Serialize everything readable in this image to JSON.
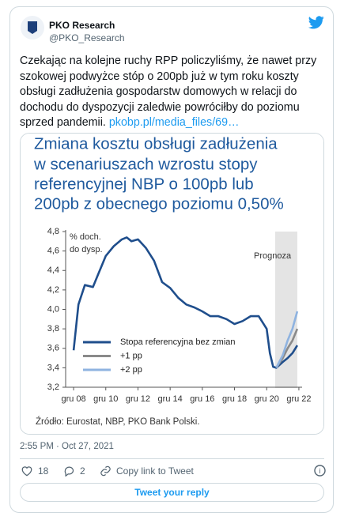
{
  "tweet": {
    "author_name": "PKO Research",
    "handle": "@PKO_Research",
    "text": "Czekając na kolejne ruchy RPP policzyliśmy, że nawet przy szokowej podwyżce stóp o 200pb już w tym roku koszty obsługi zadłużenia gospodarstw domowych w relacji do dochodu do dyspozycji zaledwie powróciłby do poziomu sprzed pandemii.",
    "link": "pkobp.pl/media_files/69…",
    "timestamp": "2:55 PM · Oct 27, 2021",
    "likes": "18",
    "replies": "2",
    "copy_link": "Copy link to Tweet",
    "reply_button": "Tweet your reply"
  },
  "chart_data": {
    "type": "line",
    "title": [
      "Zmiana kosztu obsługi zadłużenia",
      "w scenariuszach wzrostu stopy",
      "referencyjnej NBP o 100pb lub",
      "200pb z obecnego poziomu 0,50%"
    ],
    "ylabel": [
      "% doch.",
      "do dysp."
    ],
    "annotation": "Prognoza",
    "source": "Źródło: Eurostat, NBP, PKO Bank Polski.",
    "x": [
      2008,
      2008.3,
      2008.7,
      2009.2,
      2009.5,
      2010,
      2010.5,
      2011,
      2011.3,
      2011.6,
      2012,
      2012.5,
      2013,
      2013.5,
      2014,
      2014.5,
      2015,
      2015.5,
      2016,
      2016.5,
      2017,
      2017.5,
      2018,
      2018.5,
      2019,
      2019.5,
      2020,
      2020.2,
      2020.4,
      2020.6,
      2021,
      2021.3,
      2021.6,
      2021.9
    ],
    "series": [
      {
        "name": "Stopa referencyjna bez zmian",
        "color": "#1f4e8c",
        "values": [
          3.58,
          4.05,
          4.25,
          4.23,
          4.35,
          4.55,
          4.65,
          4.72,
          4.74,
          4.7,
          4.72,
          4.63,
          4.5,
          4.28,
          4.22,
          4.12,
          4.05,
          4.02,
          3.98,
          3.93,
          3.93,
          3.9,
          3.85,
          3.88,
          3.93,
          3.93,
          3.8,
          3.55,
          3.41,
          3.4,
          3.46,
          3.5,
          3.55,
          3.63
        ]
      },
      {
        "name": "+1 pp",
        "color": "#8a8a8a",
        "values": [
          null,
          null,
          null,
          null,
          null,
          null,
          null,
          null,
          null,
          null,
          null,
          null,
          null,
          null,
          null,
          null,
          null,
          null,
          null,
          null,
          null,
          null,
          null,
          null,
          null,
          null,
          null,
          null,
          null,
          3.4,
          3.5,
          3.6,
          3.68,
          3.8
        ]
      },
      {
        "name": "+2 pp",
        "color": "#8fb3e0",
        "values": [
          null,
          null,
          null,
          null,
          null,
          null,
          null,
          null,
          null,
          null,
          null,
          null,
          null,
          null,
          null,
          null,
          null,
          null,
          null,
          null,
          null,
          null,
          null,
          null,
          null,
          null,
          null,
          null,
          null,
          3.4,
          3.53,
          3.68,
          3.8,
          3.98
        ]
      }
    ],
    "xlim": [
      2007.8,
      2022.2
    ],
    "ylim": [
      3.2,
      4.8
    ],
    "xticks": [
      {
        "value": 2008,
        "label": "gru 08"
      },
      {
        "value": 2010,
        "label": "gru 10"
      },
      {
        "value": 2012,
        "label": "gru 12"
      },
      {
        "value": 2014,
        "label": "gru 14"
      },
      {
        "value": 2016,
        "label": "gru 16"
      },
      {
        "value": 2018,
        "label": "gru 18"
      },
      {
        "value": 2020,
        "label": "gru 20"
      },
      {
        "value": 2022,
        "label": "gru 22"
      }
    ],
    "yticks": [
      {
        "value": 3.2,
        "label": "3,2"
      },
      {
        "value": 3.4,
        "label": "3,4"
      },
      {
        "value": 3.6,
        "label": "3,6"
      },
      {
        "value": 3.8,
        "label": "3,8"
      },
      {
        "value": 4,
        "label": "4,0"
      },
      {
        "value": 4.2,
        "label": "4,2"
      },
      {
        "value": 4.4,
        "label": "4,4"
      },
      {
        "value": 4.6,
        "label": "4,6"
      },
      {
        "value": 4.8,
        "label": "4,8"
      }
    ],
    "grid": false,
    "legend": "lower left"
  }
}
